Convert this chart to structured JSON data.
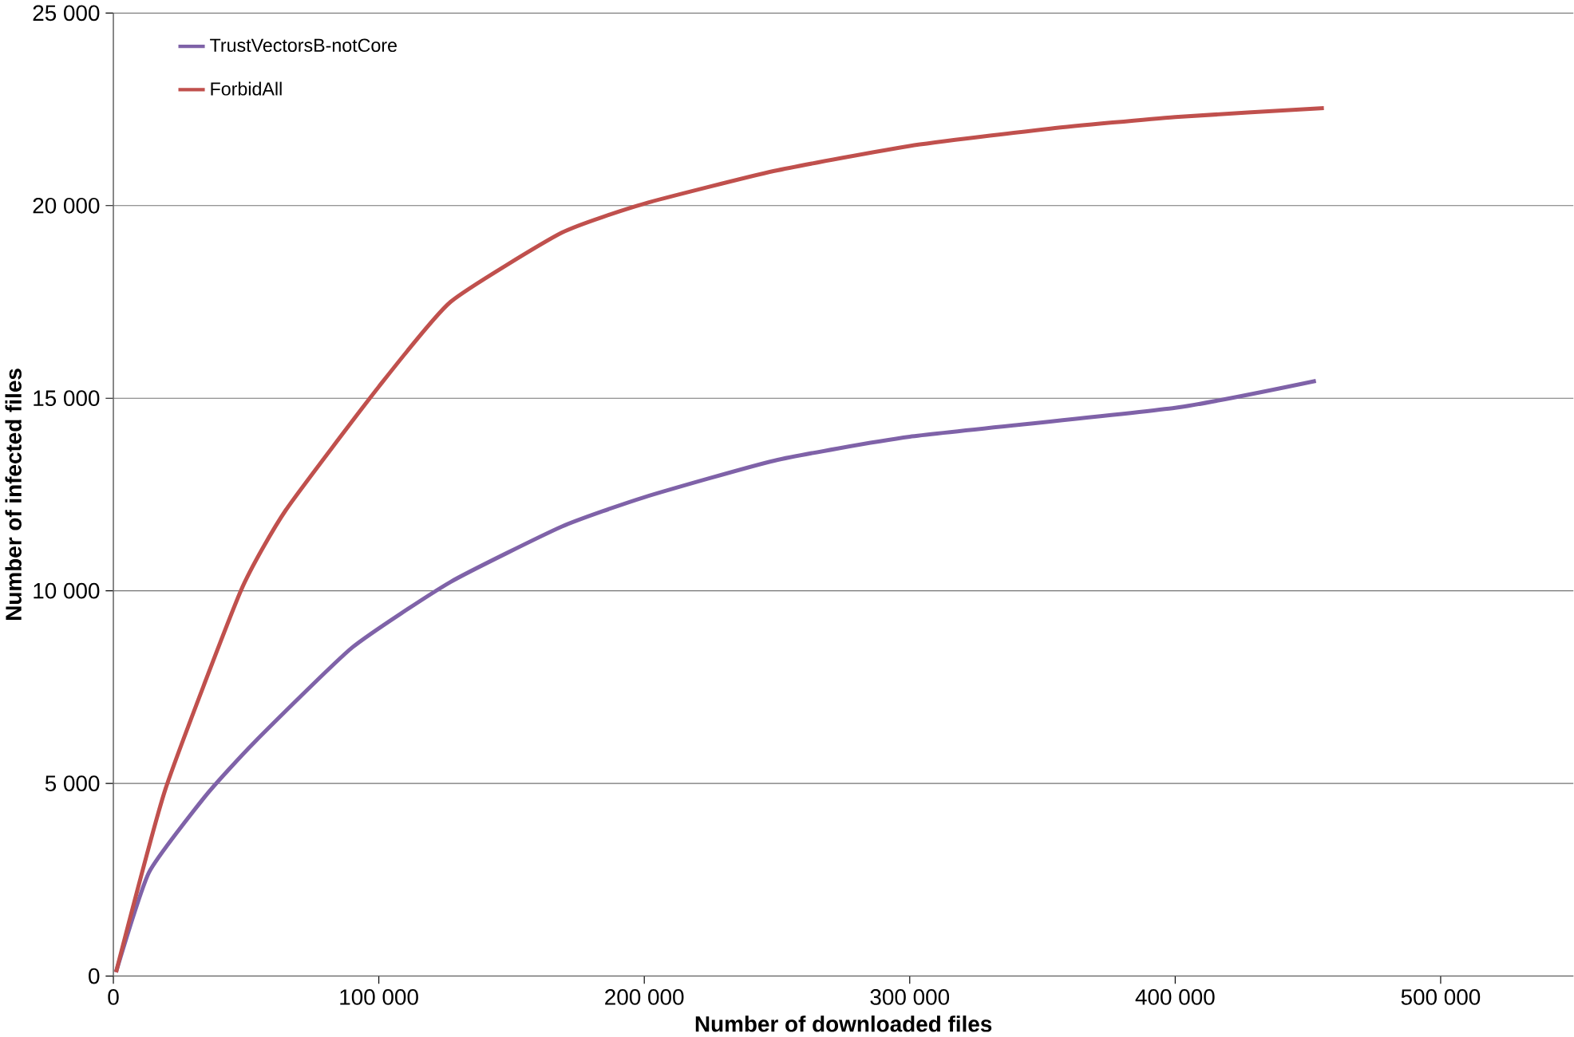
{
  "chart_data": {
    "type": "line",
    "xlabel": "Number of downloaded files",
    "ylabel": "Number of infected files",
    "xlim": [
      0,
      550000
    ],
    "ylim": [
      0,
      25000
    ],
    "xticks": [
      {
        "value": 0,
        "label": "0"
      },
      {
        "value": 100000,
        "label": "100 000"
      },
      {
        "value": 200000,
        "label": "200 000"
      },
      {
        "value": 300000,
        "label": "300 000"
      },
      {
        "value": 400000,
        "label": "400 000"
      },
      {
        "value": 500000,
        "label": "500 000"
      }
    ],
    "yticks": [
      {
        "value": 0,
        "label": "0"
      },
      {
        "value": 5000,
        "label": "5 000"
      },
      {
        "value": 10000,
        "label": "10 000"
      },
      {
        "value": 15000,
        "label": "15 000"
      },
      {
        "value": 20000,
        "label": "20 000"
      },
      {
        "value": 25000,
        "label": "25 000"
      }
    ],
    "grid": "y",
    "legend": "top left",
    "marker": "none",
    "line_style": "solid",
    "series": [
      {
        "name": "TrustVectorsB-notCore",
        "color": "#7f62a8",
        "x": [
          1000,
          13500,
          35000,
          53000,
          90000,
          127000,
          169000,
          200000,
          249000,
          300000,
          400000,
          453000
        ],
        "values": [
          100,
          2700,
          4700,
          6060,
          8530,
          10230,
          11670,
          12430,
          13380,
          14000,
          14750,
          15450
        ]
      },
      {
        "name": "ForbidAll",
        "color": "#c0504d",
        "x": [
          1000,
          19600,
          48000,
          65000,
          100000,
          127000,
          169000,
          200000,
          249000,
          300000,
          353000,
          400000,
          456000
        ],
        "values": [
          100,
          4850,
          10000,
          12100,
          15300,
          17500,
          19300,
          20050,
          20900,
          21550,
          22000,
          22300,
          22530
        ]
      }
    ]
  }
}
